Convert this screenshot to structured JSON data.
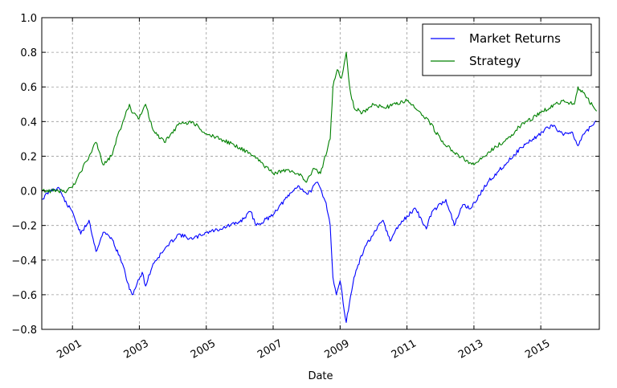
{
  "chart_data": {
    "type": "line",
    "title": "",
    "xlabel": "Date",
    "ylabel": "",
    "xlim": [
      "2000-02-01",
      "2016-10-01"
    ],
    "ylim": [
      -0.8,
      1.0
    ],
    "x_ticks": [
      "2001",
      "2003",
      "2005",
      "2007",
      "2009",
      "2011",
      "2013",
      "2015"
    ],
    "y_ticks": [
      "−0.8",
      "−0.6",
      "−0.4",
      "−0.2",
      "0.0",
      "0.2",
      "0.4",
      "0.6",
      "0.8",
      "1.0"
    ],
    "grid": true,
    "legend_position": "top-right",
    "series": [
      {
        "name": "Market Returns",
        "color": "#0000ff",
        "x": [
          "2000-02-01",
          "2000-05-01",
          "2000-08-01",
          "2000-11-01",
          "2001-01-01",
          "2001-04-01",
          "2001-07-01",
          "2001-09-15",
          "2001-12-01",
          "2002-03-01",
          "2002-07-01",
          "2002-09-15",
          "2002-10-15",
          "2003-02-01",
          "2003-03-10",
          "2003-06-01",
          "2003-10-01",
          "2004-03-01",
          "2004-08-01",
          "2005-01-01",
          "2005-06-01",
          "2006-01-01",
          "2006-05-01",
          "2006-07-01",
          "2006-12-01",
          "2007-06-01",
          "2007-10-01",
          "2008-01-15",
          "2008-05-01",
          "2008-08-01",
          "2008-09-15",
          "2008-10-15",
          "2008-11-20",
          "2009-01-01",
          "2009-03-09",
          "2009-06-01",
          "2009-10-01",
          "2010-01-01",
          "2010-04-15",
          "2010-07-01",
          "2010-10-01",
          "2011-04-01",
          "2011-08-01",
          "2011-10-01",
          "2012-03-01",
          "2012-06-01",
          "2012-09-01",
          "2012-12-01",
          "2013-06-01",
          "2013-12-01",
          "2014-06-01",
          "2014-12-01",
          "2015-05-01",
          "2015-08-25",
          "2015-12-01",
          "2016-02-11",
          "2016-05-01",
          "2016-09-01"
        ],
        "values": [
          -0.05,
          0.0,
          0.02,
          -0.08,
          -0.12,
          -0.25,
          -0.17,
          -0.35,
          -0.24,
          -0.27,
          -0.42,
          -0.57,
          -0.6,
          -0.47,
          -0.55,
          -0.42,
          -0.34,
          -0.25,
          -0.28,
          -0.24,
          -0.22,
          -0.18,
          -0.12,
          -0.2,
          -0.15,
          -0.04,
          0.03,
          -0.02,
          0.05,
          -0.07,
          -0.2,
          -0.5,
          -0.6,
          -0.52,
          -0.76,
          -0.5,
          -0.32,
          -0.25,
          -0.17,
          -0.29,
          -0.2,
          -0.1,
          -0.22,
          -0.12,
          -0.05,
          -0.2,
          -0.08,
          -0.1,
          0.05,
          0.15,
          0.25,
          0.32,
          0.38,
          0.33,
          0.34,
          0.26,
          0.34,
          0.4
        ]
      },
      {
        "name": "Strategy",
        "color": "#008000",
        "x": [
          "2000-02-01",
          "2000-11-01",
          "2001-01-01",
          "2001-03-01",
          "2001-06-01",
          "2001-09-15",
          "2001-12-01",
          "2002-03-01",
          "2002-06-01",
          "2002-09-15",
          "2002-10-15",
          "2003-01-01",
          "2003-03-10",
          "2003-06-01",
          "2003-10-01",
          "2004-03-01",
          "2004-08-01",
          "2005-01-01",
          "2005-06-01",
          "2006-01-01",
          "2006-06-01",
          "2007-01-01",
          "2007-06-01",
          "2007-10-01",
          "2008-01-01",
          "2008-03-15",
          "2008-06-01",
          "2008-09-15",
          "2008-10-15",
          "2008-12-01",
          "2009-01-15",
          "2009-03-09",
          "2009-04-15",
          "2009-06-01",
          "2009-09-01",
          "2010-01-01",
          "2010-05-01",
          "2010-09-01",
          "2011-01-01",
          "2011-06-01",
          "2011-09-01",
          "2012-01-01",
          "2012-06-01",
          "2013-01-01",
          "2013-06-01",
          "2014-01-01",
          "2014-06-01",
          "2015-01-01",
          "2015-06-01",
          "2015-08-25",
          "2016-01-01",
          "2016-02-11",
          "2016-05-01",
          "2016-09-01"
        ],
        "values": [
          0.0,
          0.0,
          0.02,
          0.08,
          0.17,
          0.28,
          0.15,
          0.2,
          0.35,
          0.5,
          0.45,
          0.42,
          0.5,
          0.35,
          0.28,
          0.38,
          0.4,
          0.33,
          0.3,
          0.25,
          0.2,
          0.1,
          0.12,
          0.1,
          0.05,
          0.13,
          0.1,
          0.3,
          0.6,
          0.7,
          0.65,
          0.8,
          0.6,
          0.48,
          0.45,
          0.5,
          0.48,
          0.5,
          0.52,
          0.45,
          0.4,
          0.3,
          0.22,
          0.15,
          0.22,
          0.3,
          0.38,
          0.45,
          0.5,
          0.52,
          0.5,
          0.6,
          0.55,
          0.46
        ]
      }
    ]
  }
}
